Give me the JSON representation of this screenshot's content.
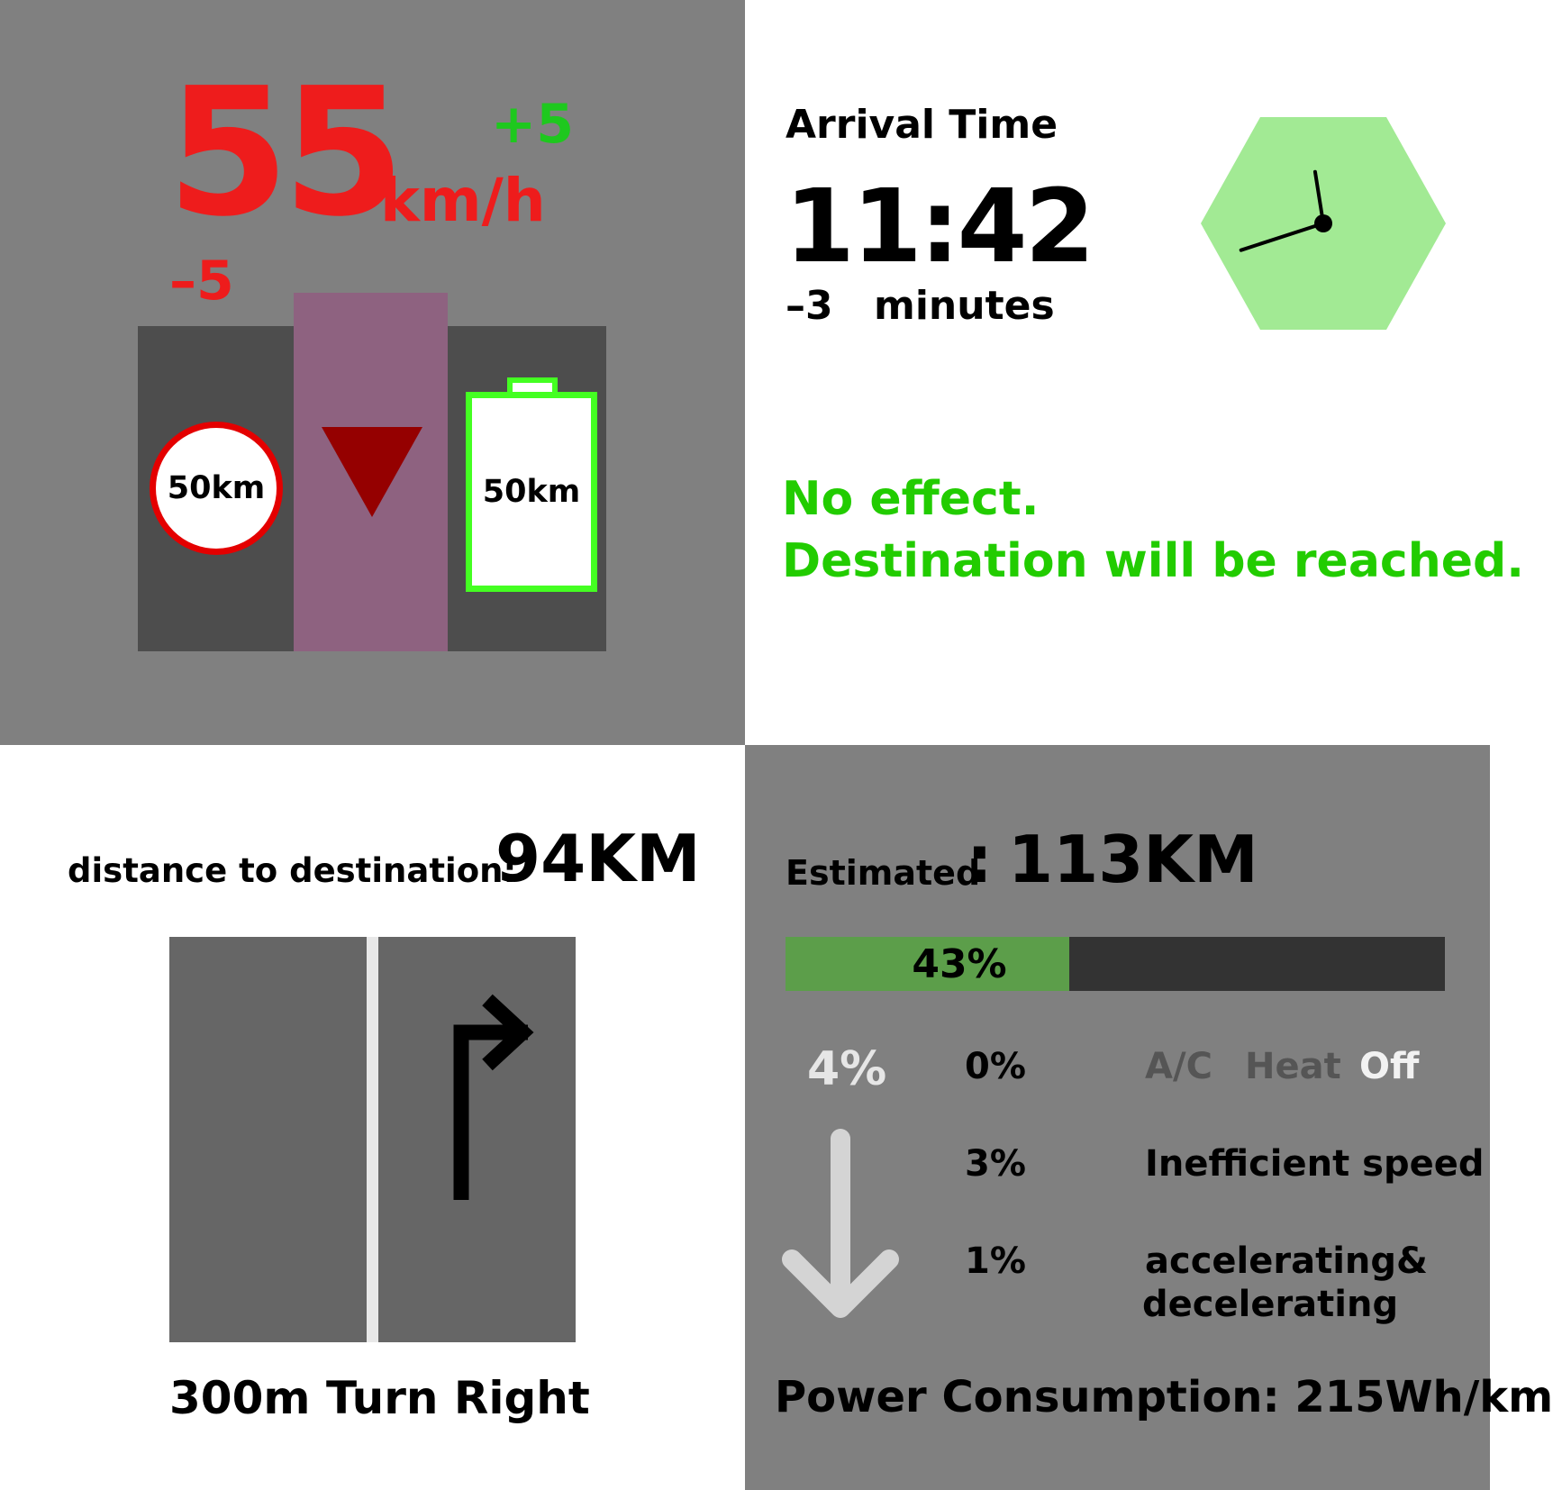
{
  "speed": {
    "value": "55",
    "unit": "km/h",
    "plus": "+5",
    "minus": "–5",
    "limit_sign": "50km",
    "battery_range": "50km",
    "colors": {
      "speed": "#ee1c1c",
      "plus": "#1ec81e",
      "battery": "#44ff22"
    }
  },
  "arrival": {
    "title": "Arrival Time",
    "time": "11:42",
    "diff": "–3",
    "diff_unit": "minutes",
    "clock": {
      "hour": 11,
      "minute": 42,
      "color": "#a2ea94"
    },
    "effect_line1": "No effect.",
    "effect_line2": "Destination will be reached."
  },
  "navigation": {
    "distance_label": "distance to destination:",
    "distance_value": "94KM",
    "next_distance": "300m",
    "next_instruction": "Turn Right"
  },
  "energy": {
    "estimated_label": "Estimated",
    "estimated_colon": ":",
    "estimated_value": "113KM",
    "battery_percent": 43,
    "battery_label": "43%",
    "total_saving": "4%",
    "rows": [
      {
        "pct": "0%",
        "label": ""
      },
      {
        "pct": "3%",
        "label": "Inefficient speed"
      },
      {
        "pct": "1%",
        "label": "accelerating&"
      }
    ],
    "row3_label_line2": "decelerating",
    "climate": {
      "ac": "A/C",
      "heat": "Heat",
      "off": "Off"
    },
    "power_consumption": "Power Consumption: 215Wh/km"
  }
}
